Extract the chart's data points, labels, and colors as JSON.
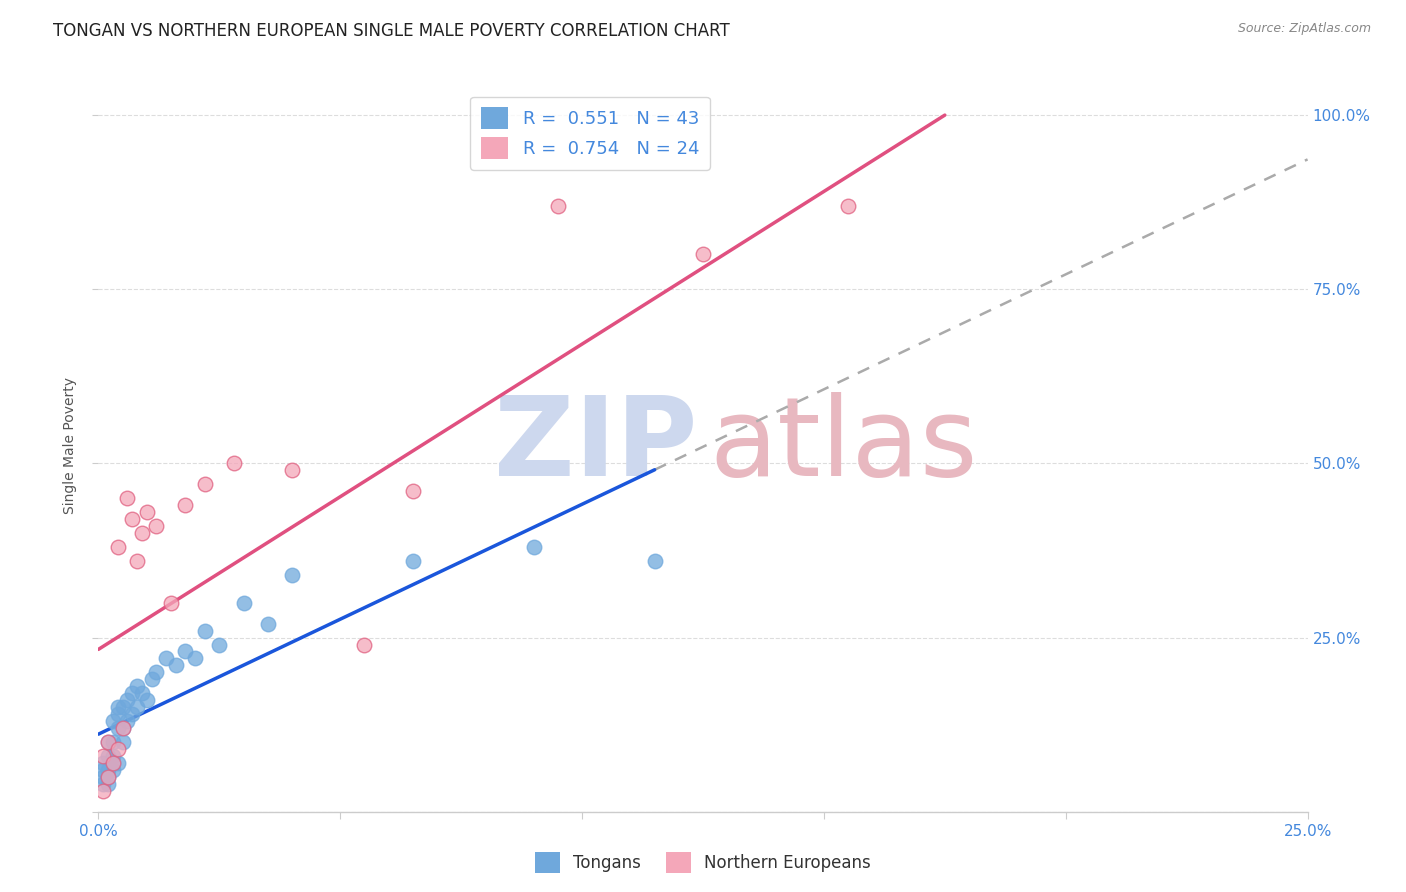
{
  "title": "TONGAN VS NORTHERN EUROPEAN SINGLE MALE POVERTY CORRELATION CHART",
  "source": "Source: ZipAtlas.com",
  "ylabel_label": "Single Male Poverty",
  "xlim": [
    0.0,
    0.25
  ],
  "ylim": [
    0.0,
    1.05
  ],
  "ytick_vals": [
    0.0,
    0.25,
    0.5,
    0.75,
    1.0
  ],
  "xtick_vals": [
    0.0,
    0.05,
    0.1,
    0.15,
    0.2,
    0.25
  ],
  "R_tongans": "0.551",
  "N_tongans": "43",
  "R_northern": "0.754",
  "N_northern": "24",
  "tongans_color": "#6fa8dc",
  "tongans_edge_color": "#6fa8dc",
  "northern_color": "#f4a7b9",
  "northern_edge_color": "#e06080",
  "tongans_line_color": "#1a56db",
  "northern_line_color": "#e05080",
  "dashed_line_color": "#aaaaaa",
  "watermark_ZIP_color": "#cdd8ee",
  "watermark_atlas_color": "#e8b8c0",
  "background_color": "#ffffff",
  "grid_color": "#dddddd",
  "title_color": "#222222",
  "source_color": "#888888",
  "tick_color": "#4488dd",
  "label_color": "#555555",
  "title_fontsize": 12,
  "source_fontsize": 9,
  "tick_fontsize": 11,
  "legend_fontsize": 13,
  "ylabel_fontsize": 10,
  "tongans_x": [
    0.001,
    0.001,
    0.001,
    0.001,
    0.002,
    0.002,
    0.002,
    0.002,
    0.002,
    0.003,
    0.003,
    0.003,
    0.003,
    0.003,
    0.004,
    0.004,
    0.004,
    0.004,
    0.005,
    0.005,
    0.005,
    0.006,
    0.006,
    0.007,
    0.007,
    0.008,
    0.008,
    0.009,
    0.01,
    0.011,
    0.012,
    0.014,
    0.016,
    0.018,
    0.02,
    0.022,
    0.025,
    0.03,
    0.035,
    0.04,
    0.065,
    0.09,
    0.115
  ],
  "tongans_y": [
    0.04,
    0.05,
    0.06,
    0.07,
    0.04,
    0.05,
    0.06,
    0.08,
    0.1,
    0.06,
    0.07,
    0.08,
    0.1,
    0.13,
    0.07,
    0.12,
    0.14,
    0.15,
    0.1,
    0.12,
    0.15,
    0.13,
    0.16,
    0.14,
    0.17,
    0.15,
    0.18,
    0.17,
    0.16,
    0.19,
    0.2,
    0.22,
    0.21,
    0.23,
    0.22,
    0.26,
    0.24,
    0.3,
    0.27,
    0.34,
    0.36,
    0.38,
    0.36
  ],
  "northern_x": [
    0.001,
    0.001,
    0.002,
    0.002,
    0.003,
    0.004,
    0.004,
    0.005,
    0.006,
    0.007,
    0.008,
    0.009,
    0.01,
    0.012,
    0.015,
    0.018,
    0.022,
    0.028,
    0.04,
    0.055,
    0.065,
    0.095,
    0.125,
    0.155
  ],
  "northern_y": [
    0.03,
    0.08,
    0.05,
    0.1,
    0.07,
    0.09,
    0.38,
    0.12,
    0.45,
    0.42,
    0.36,
    0.4,
    0.43,
    0.41,
    0.3,
    0.44,
    0.47,
    0.5,
    0.49,
    0.24,
    0.46,
    0.87,
    0.8,
    0.87
  ],
  "blue_line_x_start": 0.0,
  "blue_line_x_solid_end": 0.115,
  "blue_line_x_dashed_end": 0.25,
  "pink_line_x_start": 0.0,
  "pink_line_x_end": 0.175
}
